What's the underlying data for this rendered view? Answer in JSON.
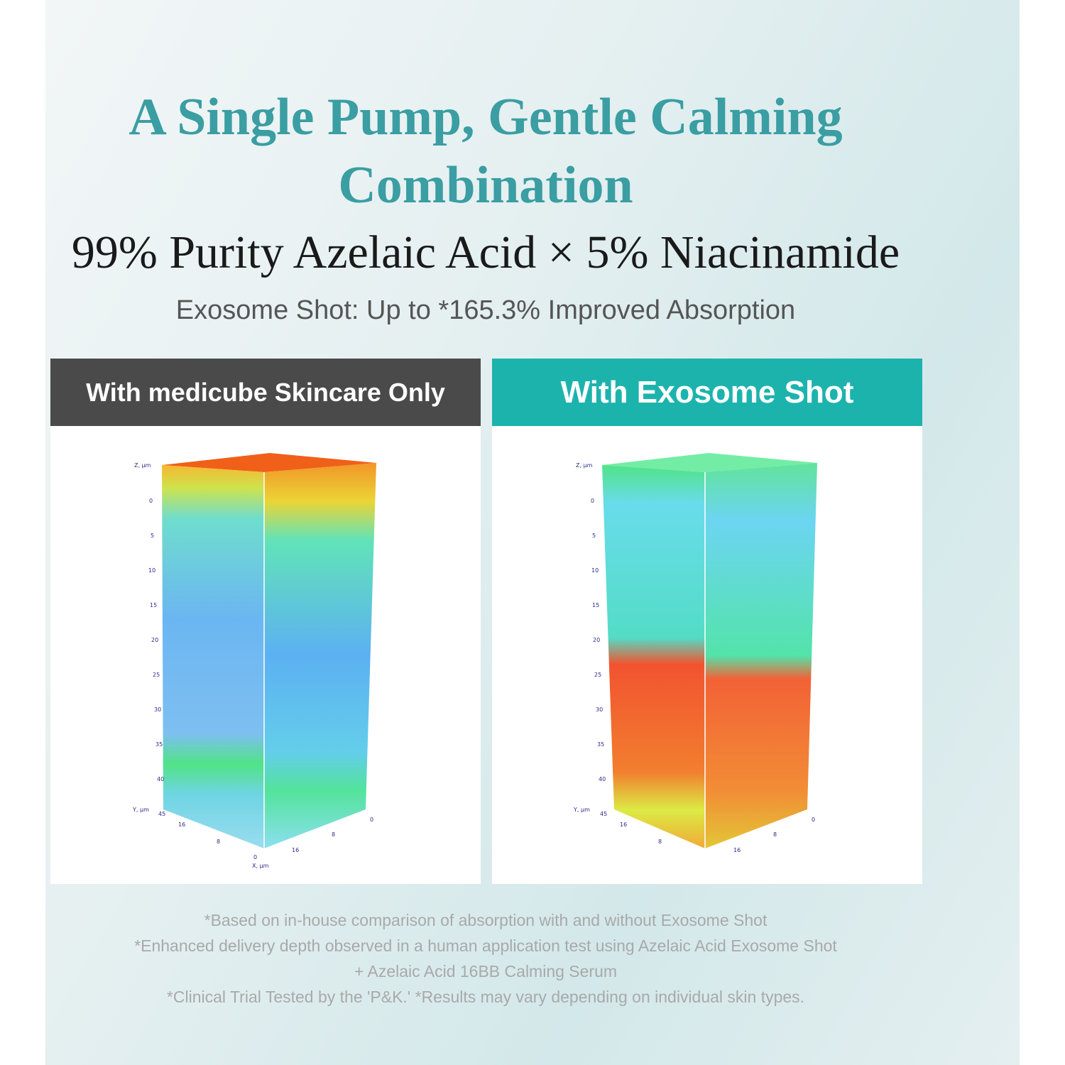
{
  "headline": {
    "line1": "A Single Pump, Gentle Calming",
    "line2": "Combination"
  },
  "subtitle": "99% Purity Azelaic Acid × 5% Niacinamide",
  "absorption_claim": "Exosome Shot: Up to *165.3% Improved Absorption",
  "panels": [
    {
      "label": "With medicube Skincare Only",
      "header_color": "#4a4a4a"
    },
    {
      "label": "With Exosome Shot",
      "header_color": "#1db3ad"
    }
  ],
  "axes": {
    "z_label": "Z, µm",
    "y_label": "Y, µm",
    "x_label": "X, µm",
    "z_ticks": [
      "0",
      "5",
      "10",
      "15",
      "20",
      "25",
      "30",
      "35",
      "40",
      "45"
    ],
    "y_ticks": [
      "16",
      "8",
      "0"
    ],
    "x_ticks": [
      "0",
      "8",
      "16"
    ]
  },
  "footnotes": [
    "*Based on in-house comparison of absorption with and without Exosome Shot",
    "*Enhanced delivery depth observed in a human application test using Azelaic Acid Exosome Shot",
    "+ Azelaic Acid 16BB Calming Serum",
    "*Clinical Trial Tested by the 'P&K.' *Results may vary depending on individual skin types."
  ]
}
